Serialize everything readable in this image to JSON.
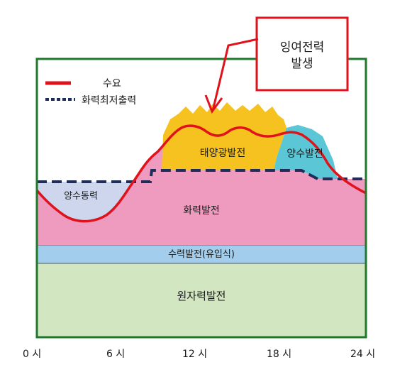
{
  "diagram": {
    "callout": {
      "line1": "잉여전력",
      "line2": "발생"
    },
    "legend": {
      "demand": "수요",
      "thermal_min_output": "화력최저출력"
    },
    "regions": {
      "solar": "태양광발전",
      "pumped_gen": "양수발전",
      "pumped_power": "양수동력",
      "thermal": "화력발전",
      "hydro": "수력발전(유입식)",
      "nuclear": "원자력발전"
    },
    "x_ticks": [
      "0 시",
      "6 시",
      "12 시",
      "18 시",
      "24 시"
    ],
    "colors": {
      "frame": "#1e7a2a",
      "demand_line": "#e1121c",
      "thermal_min_line": "#1e2d5a",
      "solar": "#f6c21f",
      "pumped_gen": "#5bc6d6",
      "pumped_power": "#cdd6ec",
      "thermal": "#ef9bbf",
      "hydro": "#a3cdec",
      "nuclear": "#d3e6c2",
      "callout_border": "#e1121c"
    }
  }
}
